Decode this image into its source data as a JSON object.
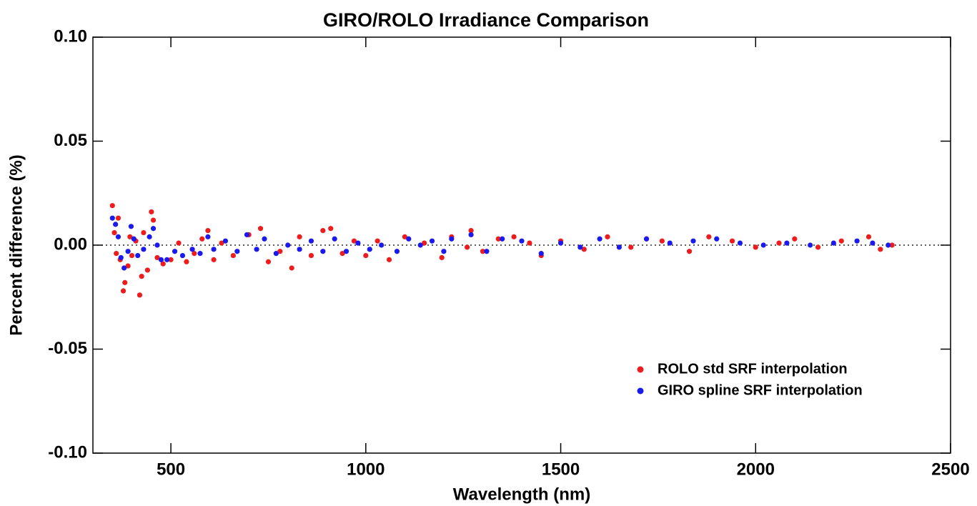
{
  "chart_data": {
    "type": "scatter",
    "title": "GIRO/ROLO Irradiance Comparison",
    "xlabel": "Wavelength (nm)",
    "ylabel": "Percent difference (%)",
    "xlim": [
      300,
      2500
    ],
    "xticks": [
      500,
      1000,
      1500,
      2000,
      2500
    ],
    "ylim": [
      -0.1,
      0.1
    ],
    "yticks": [
      {
        "value": -0.1,
        "label": "-0.10"
      },
      {
        "value": -0.05,
        "label": "-0.05"
      },
      {
        "value": 0,
        "label": "0.00"
      },
      {
        "value": 0.05,
        "label": "0.05"
      },
      {
        "value": 0.1,
        "label": "0.10"
      }
    ],
    "zero_line": true,
    "legend": "lower right",
    "series": [
      {
        "name": "ROLO std SRF interpolation",
        "color": "#ee1c1c",
        "x": [
          350,
          355,
          360,
          365,
          370,
          378,
          382,
          390,
          395,
          400,
          410,
          420,
          425,
          430,
          440,
          450,
          455,
          465,
          480,
          500,
          520,
          540,
          560,
          580,
          595,
          610,
          630,
          660,
          700,
          730,
          750,
          780,
          810,
          830,
          860,
          890,
          910,
          940,
          970,
          1000,
          1030,
          1060,
          1100,
          1150,
          1195,
          1220,
          1260,
          1270,
          1300,
          1340,
          1380,
          1420,
          1450,
          1500,
          1560,
          1620,
          1680,
          1720,
          1760,
          1830,
          1880,
          1940,
          2000,
          2060,
          2100,
          2160,
          2220,
          2290,
          2320,
          2350
        ],
        "values": [
          0.019,
          0.006,
          -0.004,
          0.013,
          -0.007,
          -0.022,
          -0.018,
          -0.01,
          0.004,
          -0.005,
          0.002,
          -0.024,
          -0.015,
          0.006,
          -0.012,
          0.016,
          0.012,
          -0.006,
          -0.009,
          -0.007,
          0.001,
          -0.008,
          -0.004,
          0.003,
          0.007,
          -0.007,
          0.001,
          -0.005,
          0.005,
          0.008,
          -0.008,
          -0.003,
          -0.011,
          0.004,
          -0.005,
          0.007,
          0.008,
          -0.004,
          0.002,
          -0.005,
          0.002,
          -0.007,
          0.004,
          0.001,
          -0.006,
          0.004,
          -0.001,
          0.007,
          -0.003,
          0.003,
          0.004,
          0.001,
          -0.005,
          0.002,
          -0.002,
          0.004,
          -0.001,
          0.003,
          0.002,
          -0.003,
          0.004,
          0.002,
          -0.001,
          0.001,
          0.003,
          -0.001,
          0.002,
          0.004,
          -0.002,
          0.0
        ]
      },
      {
        "name": "GIRO spline SRF interpolation",
        "color": "#1a1aee",
        "x": [
          350,
          358,
          365,
          372,
          380,
          390,
          398,
          405,
          415,
          430,
          445,
          455,
          465,
          475,
          490,
          510,
          530,
          555,
          575,
          595,
          610,
          640,
          670,
          695,
          720,
          740,
          770,
          800,
          830,
          860,
          890,
          920,
          950,
          980,
          1010,
          1040,
          1080,
          1110,
          1140,
          1170,
          1200,
          1220,
          1270,
          1310,
          1350,
          1400,
          1450,
          1500,
          1550,
          1600,
          1650,
          1720,
          1780,
          1840,
          1900,
          1960,
          2020,
          2080,
          2140,
          2200,
          2260,
          2300,
          2340
        ],
        "values": [
          0.013,
          0.01,
          0.004,
          -0.006,
          -0.011,
          -0.003,
          0.009,
          0.003,
          -0.005,
          -0.002,
          0.004,
          0.008,
          0.0,
          -0.007,
          -0.007,
          -0.003,
          -0.005,
          -0.002,
          -0.004,
          0.004,
          -0.002,
          0.002,
          -0.003,
          0.005,
          -0.002,
          0.003,
          -0.004,
          0.0,
          -0.002,
          0.002,
          -0.003,
          0.003,
          -0.003,
          0.001,
          -0.002,
          0.0,
          -0.003,
          0.003,
          0.0,
          0.002,
          -0.003,
          0.003,
          0.005,
          -0.003,
          0.003,
          0.002,
          -0.004,
          0.001,
          -0.001,
          0.003,
          -0.001,
          0.003,
          0.001,
          0.002,
          0.003,
          0.001,
          0.0,
          0.001,
          0.0,
          0.001,
          0.002,
          0.001,
          0.0
        ]
      }
    ]
  }
}
